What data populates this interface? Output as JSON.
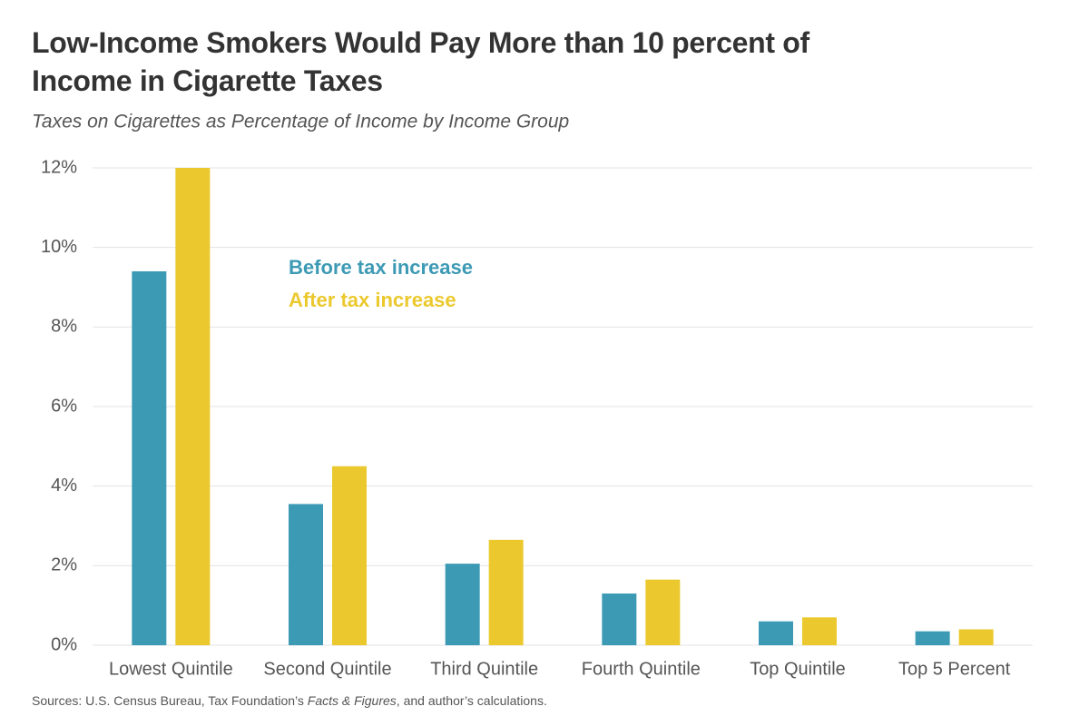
{
  "chart_data": {
    "type": "bar",
    "title": "Low-Income Smokers Would Pay More than 10 percent of Income in Cigarette Taxes",
    "subtitle": "Taxes on Cigarettes as Percentage of Income by Income Group",
    "categories": [
      "Lowest Quintile",
      "Second Quintile",
      "Third Quintile",
      "Fourth Quintile",
      "Top Quintile",
      "Top 5 Percent"
    ],
    "series": [
      {
        "name": "Before tax increase",
        "color": "#3d9ab5",
        "values": [
          9.4,
          3.55,
          2.05,
          1.3,
          0.6,
          0.35
        ]
      },
      {
        "name": "After tax increase",
        "color": "#ebc92e",
        "values": [
          12.0,
          4.5,
          2.65,
          1.65,
          0.7,
          0.4
        ]
      }
    ],
    "ylim": [
      0,
      12
    ],
    "yticks": [
      {
        "value": 0,
        "label": "0%"
      },
      {
        "value": 2,
        "label": "2%"
      },
      {
        "value": 4,
        "label": "4%"
      },
      {
        "value": 6,
        "label": "6%"
      },
      {
        "value": 8,
        "label": "8%"
      },
      {
        "value": 10,
        "label": "10%"
      },
      {
        "value": 12,
        "label": "12%"
      }
    ],
    "grid": true,
    "source_parts": [
      "Sources: U.S. Census Bureau, Tax Foundation’s ",
      "Facts & Figures",
      ", and author’s calculations."
    ]
  }
}
